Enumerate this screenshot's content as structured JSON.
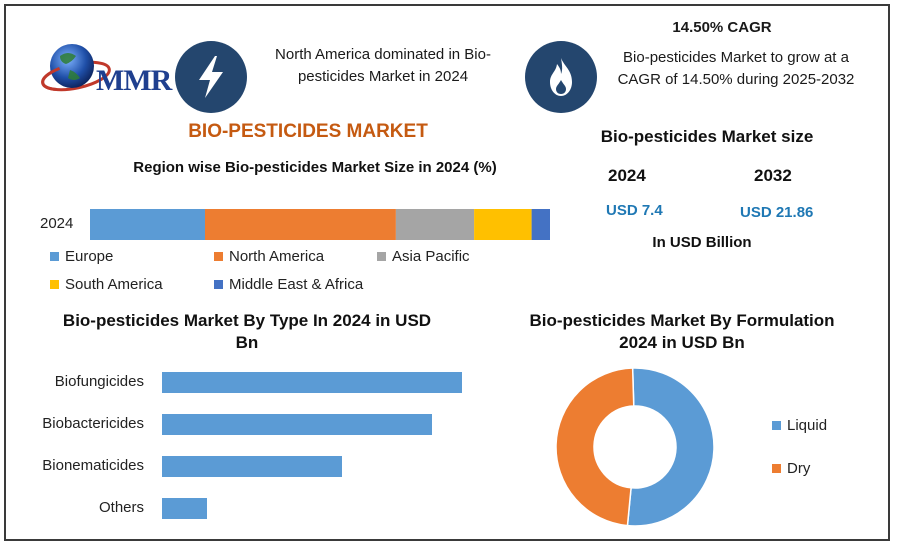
{
  "brand": {
    "logo_text": "MMR"
  },
  "header": {
    "left_info": "North America dominated in Bio-pesticides Market in 2024",
    "right_title": "14.50% CAGR",
    "right_info": "Bio-pesticides Market to grow at a CAGR of 14.50% during 2025-2032",
    "icon_left": "lightning-icon",
    "icon_right": "flame-icon"
  },
  "market_title": "BIO-PESTICIDES MARKET",
  "market_size": {
    "title": "Bio-pesticides Market size",
    "year1": "2024",
    "year2": "2032",
    "value1": "USD 7.4",
    "value2": "USD 21.86",
    "unit": "In USD Billion"
  },
  "colors": {
    "europe": "#5b9bd5",
    "north_america": "#ed7d31",
    "asia_pacific": "#a5a5a5",
    "south_america": "#ffc000",
    "mea": "#4472c4",
    "navy": "#24466e",
    "title_orange": "#c55a11"
  },
  "chart_data": [
    {
      "type": "bar",
      "stacked": true,
      "orientation": "horizontal",
      "title": "Region wise Bio-pesticides Market Size in 2024 (%)",
      "categories": [
        "2024"
      ],
      "series": [
        {
          "name": "Europe",
          "values": [
            25
          ],
          "color": "#5b9bd5"
        },
        {
          "name": "North America",
          "values": [
            41.5
          ],
          "color": "#ed7d31"
        },
        {
          "name": "Asia Pacific",
          "values": [
            17
          ],
          "color": "#a5a5a5"
        },
        {
          "name": "South America",
          "values": [
            12.5
          ],
          "color": "#ffc000"
        },
        {
          "name": "Middle East & Africa",
          "values": [
            4
          ],
          "color": "#4472c4"
        }
      ],
      "xlim": [
        0,
        100
      ],
      "legend": "bottom"
    },
    {
      "type": "bar",
      "orientation": "horizontal",
      "title": "Bio-pesticides Market By Type In 2024 in USD Bn",
      "categories": [
        "Biofungicides",
        "Biobactericides",
        "Bionematicides",
        "Others"
      ],
      "values": [
        3.0,
        2.7,
        1.8,
        0.45
      ],
      "xlim": [
        0,
        3.2
      ],
      "color": "#5b9bd5"
    },
    {
      "type": "pie",
      "donut": true,
      "title": "Bio-pesticides Market By Formulation 2024 in USD Bn",
      "categories": [
        "Liquid",
        "Dry"
      ],
      "values": [
        52,
        48
      ],
      "colors": [
        "#5b9bd5",
        "#ed7d31"
      ],
      "legend": "right"
    }
  ]
}
